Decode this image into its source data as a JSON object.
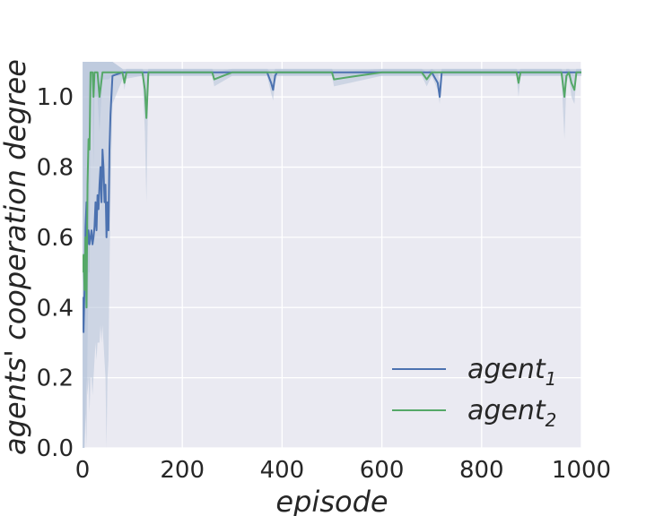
{
  "chart_data": {
    "type": "line",
    "title": "",
    "xlabel": "episode",
    "ylabel": "agents' cooperation degree",
    "xlim": [
      0,
      1000
    ],
    "ylim": [
      0.0,
      1.1
    ],
    "x_ticks": [
      0,
      200,
      400,
      600,
      800,
      1000
    ],
    "y_ticks": [
      0.0,
      0.2,
      0.4,
      0.6,
      0.8,
      1.0
    ],
    "x_tick_labels": [
      "0",
      "200",
      "400",
      "600",
      "800",
      "1000"
    ],
    "y_tick_labels": [
      "0.0",
      "0.2",
      "0.4",
      "0.6",
      "0.8",
      "1.0"
    ],
    "grid": true,
    "legend_position": "bottom-right",
    "colors": {
      "agent1": "#4c72b0",
      "agent2": "#55a868",
      "band": "#b4c3d9",
      "plot_bg": "#eaeaf2",
      "grid": "#ffffff"
    },
    "series": [
      {
        "name": "agent",
        "subscript": "1",
        "color": "#4c72b0",
        "x": [
          0,
          2,
          4,
          6,
          8,
          10,
          12,
          14,
          16,
          18,
          20,
          22,
          24,
          26,
          28,
          30,
          32,
          34,
          36,
          38,
          40,
          42,
          44,
          46,
          48,
          50,
          52,
          54,
          56,
          60,
          80,
          120,
          200,
          300,
          370,
          378,
          382,
          386,
          390,
          450,
          500,
          600,
          700,
          712,
          716,
          720,
          800,
          900,
          1000
        ],
        "y": [
          0.43,
          0.33,
          0.45,
          0.63,
          0.7,
          0.58,
          0.62,
          0.58,
          0.6,
          0.62,
          0.58,
          0.6,
          0.63,
          0.7,
          0.62,
          0.72,
          0.68,
          0.75,
          0.8,
          0.7,
          0.85,
          0.8,
          0.7,
          0.75,
          0.6,
          0.7,
          0.62,
          0.85,
          0.95,
          1.06,
          1.07,
          1.07,
          1.07,
          1.07,
          1.07,
          1.04,
          1.02,
          1.06,
          1.07,
          1.07,
          1.07,
          1.07,
          1.07,
          1.04,
          1.0,
          1.07,
          1.07,
          1.07,
          1.07
        ],
        "band_lower": [
          0.0,
          0.0,
          0.0,
          0.1,
          0.2,
          0.15,
          0.2,
          0.1,
          0.2,
          0.2,
          0.15,
          0.2,
          0.25,
          0.3,
          0.25,
          0.3,
          0.3,
          0.3,
          0.35,
          0.3,
          0.35,
          0.3,
          0.25,
          0.2,
          0.0,
          0.2,
          0.25,
          0.5,
          0.7,
          0.98,
          1.05,
          1.06,
          1.06,
          1.06,
          1.06,
          1.01,
          0.99,
          1.04,
          1.06,
          1.06,
          1.06,
          1.06,
          1.06,
          1.02,
          0.98,
          1.06,
          1.06,
          1.06,
          1.06
        ],
        "band_upper": [
          1.1,
          1.1,
          1.1,
          1.1,
          1.1,
          1.1,
          1.1,
          1.1,
          1.1,
          1.1,
          1.1,
          1.1,
          1.1,
          1.1,
          1.1,
          1.1,
          1.1,
          1.1,
          1.1,
          1.1,
          1.1,
          1.1,
          1.1,
          1.1,
          1.1,
          1.1,
          1.1,
          1.1,
          1.1,
          1.1,
          1.08,
          1.08,
          1.08,
          1.08,
          1.08,
          1.07,
          1.06,
          1.08,
          1.08,
          1.08,
          1.08,
          1.08,
          1.08,
          1.07,
          1.04,
          1.08,
          1.08,
          1.08,
          1.08
        ]
      },
      {
        "name": "agent",
        "subscript": "2",
        "color": "#55a868",
        "x": [
          0,
          2,
          4,
          6,
          8,
          10,
          12,
          14,
          16,
          18,
          20,
          22,
          24,
          26,
          28,
          30,
          34,
          40,
          44,
          48,
          52,
          60,
          80,
          84,
          88,
          120,
          125,
          128,
          132,
          200,
          260,
          264,
          300,
          380,
          500,
          504,
          600,
          680,
          690,
          700,
          720,
          800,
          870,
          874,
          878,
          900,
          960,
          966,
          970,
          975,
          980,
          986,
          990,
          1000
        ],
        "y": [
          0.5,
          0.55,
          0.45,
          0.6,
          0.4,
          0.75,
          0.88,
          0.85,
          1.07,
          1.07,
          1.07,
          1.0,
          1.07,
          1.07,
          1.07,
          1.07,
          1.0,
          1.07,
          1.07,
          1.07,
          1.07,
          1.07,
          1.07,
          1.04,
          1.07,
          1.07,
          1.02,
          0.94,
          1.07,
          1.07,
          1.07,
          1.05,
          1.07,
          1.07,
          1.07,
          1.05,
          1.07,
          1.07,
          1.05,
          1.07,
          1.07,
          1.07,
          1.07,
          1.04,
          1.07,
          1.07,
          1.07,
          1.0,
          1.06,
          1.07,
          1.04,
          1.02,
          1.07,
          1.07
        ],
        "band_lower": [
          0.0,
          0.0,
          0.0,
          0.1,
          0.0,
          0.3,
          0.5,
          0.5,
          1.0,
          1.0,
          1.0,
          0.8,
          1.0,
          1.0,
          1.0,
          1.0,
          0.9,
          1.05,
          1.05,
          1.05,
          1.05,
          1.06,
          1.06,
          1.02,
          1.06,
          1.06,
          0.9,
          0.7,
          1.06,
          1.06,
          1.06,
          1.03,
          1.06,
          1.06,
          1.06,
          1.03,
          1.06,
          1.06,
          1.03,
          1.06,
          1.06,
          1.06,
          1.06,
          1.0,
          1.06,
          1.06,
          1.06,
          0.88,
          1.04,
          1.06,
          1.0,
          0.98,
          1.06,
          1.06
        ],
        "band_upper": [
          1.1,
          1.1,
          1.1,
          1.1,
          1.1,
          1.1,
          1.1,
          1.1,
          1.1,
          1.1,
          1.1,
          1.1,
          1.1,
          1.1,
          1.1,
          1.1,
          1.1,
          1.1,
          1.1,
          1.1,
          1.1,
          1.1,
          1.08,
          1.07,
          1.08,
          1.08,
          1.07,
          1.06,
          1.08,
          1.08,
          1.08,
          1.07,
          1.08,
          1.08,
          1.08,
          1.07,
          1.08,
          1.08,
          1.07,
          1.08,
          1.08,
          1.08,
          1.08,
          1.07,
          1.08,
          1.08,
          1.08,
          1.06,
          1.08,
          1.08,
          1.07,
          1.06,
          1.08,
          1.08
        ]
      }
    ]
  }
}
